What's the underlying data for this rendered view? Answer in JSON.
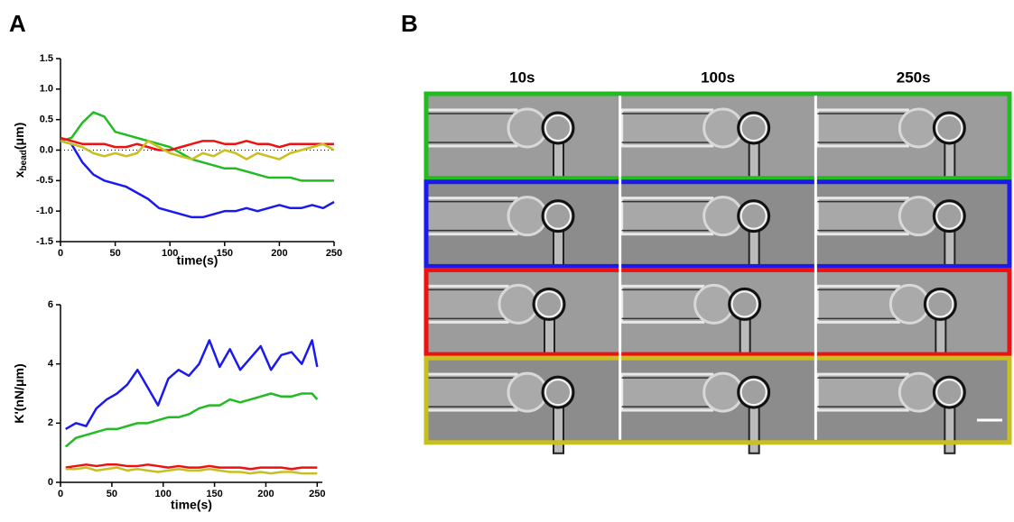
{
  "panel_labels": [
    "A",
    "B"
  ],
  "chart_data": [
    {
      "type": "line",
      "y_label": "x",
      "y_label_sub": "bead",
      "y_label_unit": "(μm)",
      "x_label": "time(s)",
      "x": [
        0,
        10,
        20,
        30,
        40,
        50,
        60,
        70,
        80,
        90,
        100,
        110,
        120,
        130,
        140,
        150,
        160,
        170,
        180,
        190,
        200,
        210,
        220,
        230,
        240,
        250
      ],
      "series": [
        {
          "color": "#22bb22",
          "values": [
            0.15,
            0.2,
            0.45,
            0.62,
            0.55,
            0.3,
            0.25,
            0.2,
            0.15,
            0.1,
            0.05,
            -0.05,
            -0.15,
            -0.2,
            -0.25,
            -0.3,
            -0.3,
            -0.35,
            -0.4,
            -0.45,
            -0.45,
            -0.45,
            -0.5,
            -0.5,
            -0.5,
            -0.5
          ]
        },
        {
          "color": "#1a1aee",
          "values": [
            0.15,
            0.1,
            -0.2,
            -0.4,
            -0.5,
            -0.55,
            -0.6,
            -0.7,
            -0.8,
            -0.95,
            -1.0,
            -1.05,
            -1.1,
            -1.1,
            -1.05,
            -1.0,
            -1.0,
            -0.95,
            -1.0,
            -0.95,
            -0.9,
            -0.95,
            -0.95,
            -0.9,
            -0.95,
            -0.85
          ]
        },
        {
          "color": "#ee1111",
          "values": [
            0.2,
            0.15,
            0.1,
            0.1,
            0.1,
            0.05,
            0.05,
            0.1,
            0.05,
            0.0,
            0.0,
            0.05,
            0.1,
            0.15,
            0.15,
            0.1,
            0.1,
            0.15,
            0.1,
            0.1,
            0.05,
            0.1,
            0.1,
            0.1,
            0.1,
            0.1
          ]
        },
        {
          "color": "#c8c020",
          "values": [
            0.15,
            0.1,
            0.05,
            -0.05,
            -0.1,
            -0.05,
            -0.1,
            -0.05,
            0.15,
            0.05,
            -0.05,
            -0.1,
            -0.15,
            -0.05,
            -0.1,
            0.0,
            -0.05,
            -0.15,
            -0.05,
            -0.1,
            -0.15,
            -0.05,
            0.0,
            0.05,
            0.1,
            0.0
          ]
        }
      ],
      "reference_line": 0,
      "xlim": [
        0,
        250
      ],
      "xticks": [
        0,
        50,
        100,
        150,
        200,
        250
      ],
      "ylim": [
        -1.5,
        1.5
      ],
      "yticks": [
        -1.5,
        {
          "value": -1,
          "label": "-1.0"
        },
        -0.5,
        {
          "value": 0,
          "label": "0.0"
        },
        0.5,
        {
          "value": 1,
          "label": "1.0"
        },
        1.5
      ]
    },
    {
      "type": "line",
      "y_label": "K'(nN/μm)",
      "x_label": "time(s)",
      "x": [
        5,
        15,
        25,
        35,
        45,
        55,
        65,
        75,
        85,
        95,
        105,
        115,
        125,
        135,
        145,
        155,
        165,
        175,
        185,
        195,
        205,
        215,
        225,
        235,
        245,
        250
      ],
      "series": [
        {
          "color": "#1a1aee",
          "values": [
            1.8,
            2.0,
            1.9,
            2.5,
            2.8,
            3.0,
            3.3,
            3.8,
            3.2,
            2.6,
            3.5,
            3.8,
            3.6,
            4.0,
            4.8,
            3.9,
            4.5,
            3.8,
            4.2,
            4.6,
            3.8,
            4.3,
            4.4,
            4.0,
            4.8,
            3.9
          ]
        },
        {
          "color": "#22bb22",
          "values": [
            1.2,
            1.5,
            1.6,
            1.7,
            1.8,
            1.8,
            1.9,
            2.0,
            2.0,
            2.1,
            2.2,
            2.2,
            2.3,
            2.5,
            2.6,
            2.6,
            2.8,
            2.7,
            2.8,
            2.9,
            3.0,
            2.9,
            2.9,
            3.0,
            3.0,
            2.8
          ]
        },
        {
          "color": "#ee1111",
          "values": [
            0.5,
            0.55,
            0.6,
            0.55,
            0.6,
            0.6,
            0.55,
            0.55,
            0.6,
            0.55,
            0.5,
            0.55,
            0.5,
            0.5,
            0.55,
            0.5,
            0.5,
            0.5,
            0.45,
            0.5,
            0.5,
            0.5,
            0.45,
            0.5,
            0.5,
            0.5
          ]
        },
        {
          "color": "#c8c020",
          "values": [
            0.45,
            0.45,
            0.5,
            0.4,
            0.45,
            0.5,
            0.4,
            0.45,
            0.4,
            0.35,
            0.4,
            0.45,
            0.4,
            0.4,
            0.45,
            0.4,
            0.35,
            0.35,
            0.3,
            0.35,
            0.3,
            0.35,
            0.35,
            0.3,
            0.3,
            0.3
          ]
        }
      ],
      "xlim": [
        0,
        255
      ],
      "xticks": [
        0,
        50,
        100,
        150,
        200,
        250
      ],
      "ylim": [
        0,
        6
      ],
      "yticks": [
        0,
        2,
        4,
        6
      ]
    }
  ],
  "image_panel": {
    "columns": [
      "10s",
      "100s",
      "250s"
    ],
    "row_colors": [
      "#22bb22",
      "#1a1aee",
      "#ee1111",
      "#c8c020"
    ]
  }
}
